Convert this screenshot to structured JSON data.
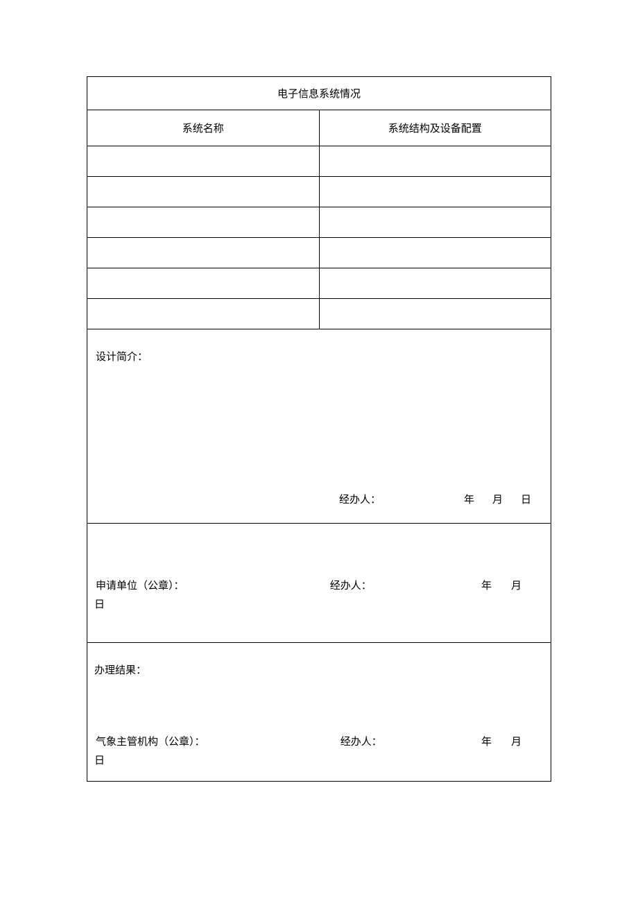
{
  "title": "电子信息系统情况",
  "headers": {
    "system_name": "系统名称",
    "system_config": "系统结构及设备配置"
  },
  "rows": [
    {
      "name": "",
      "config": ""
    },
    {
      "name": "",
      "config": ""
    },
    {
      "name": "",
      "config": ""
    },
    {
      "name": "",
      "config": ""
    },
    {
      "name": "",
      "config": ""
    },
    {
      "name": "",
      "config": ""
    }
  ],
  "design": {
    "label": "设计简介：",
    "operator_label": "经办人：",
    "year": "年",
    "month": "月",
    "day": "日"
  },
  "applicant": {
    "stamp_label": "申请单位（公章）：",
    "operator_label": "经办人：",
    "year": "年",
    "month": "月",
    "day": "日"
  },
  "result": {
    "label": "办理结果：",
    "stamp_label": "气象主管机构（公章）：",
    "operator_label": "经办人：",
    "year": "年",
    "month": "月",
    "day": "日"
  }
}
